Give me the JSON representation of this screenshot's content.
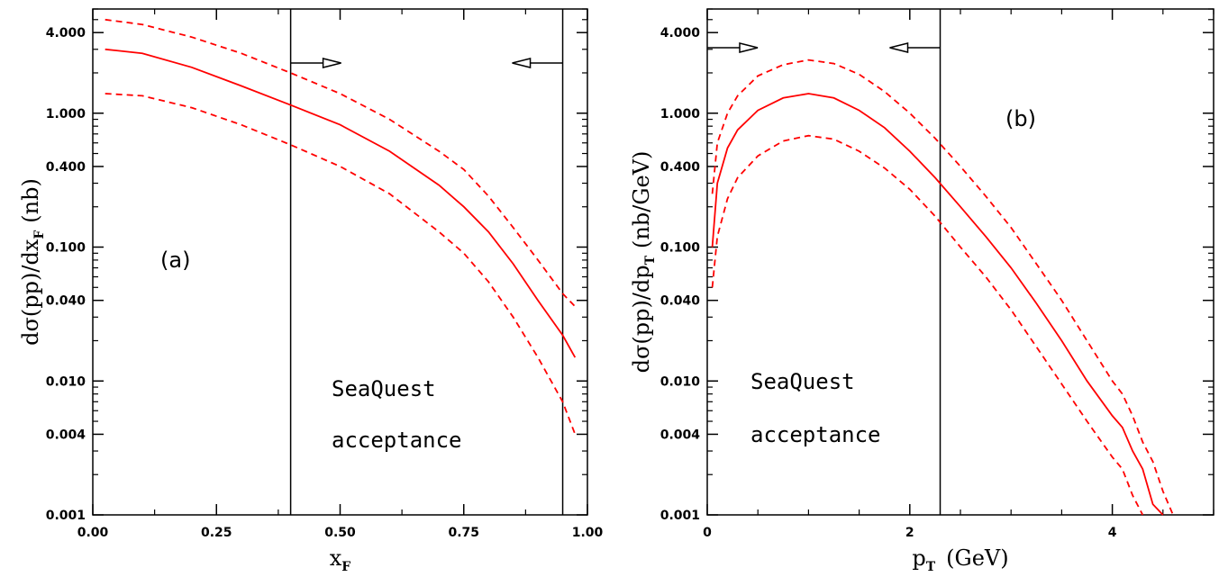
{
  "chart_data": [
    {
      "type": "line",
      "panel_label": "(a)",
      "xlabel": "x",
      "xlabel_sub": "F",
      "ylabel": "dσ(pp)/dx",
      "ylabel_sub": "F",
      "ylabel_unit": "(nb)",
      "xlim": [
        0,
        1
      ],
      "ylim": [
        0.001,
        6
      ],
      "yscale": "log",
      "xticks": [
        0,
        0.25,
        0.5,
        0.75,
        1.0
      ],
      "xtick_labels": [
        "0.00",
        "0.25",
        "0.50",
        "0.75",
        "1.00"
      ],
      "yticks": [
        0.001,
        0.004,
        0.01,
        0.04,
        0.1,
        0.4,
        1.0,
        4.0
      ],
      "ytick_labels": [
        "0.001",
        "0.004",
        "0.010",
        "0.040",
        "0.100",
        "0.400",
        "1.000",
        "4.000"
      ],
      "annotation": [
        "SeaQuest",
        "acceptance"
      ],
      "acceptance": [
        0.4,
        0.95
      ],
      "series": [
        {
          "style": "solid",
          "color": "#ff0000",
          "x": [
            0.025,
            0.1,
            0.2,
            0.3,
            0.4,
            0.5,
            0.6,
            0.7,
            0.75,
            0.8,
            0.85,
            0.9,
            0.95,
            0.975
          ],
          "y": [
            3.0,
            2.8,
            2.2,
            1.6,
            1.15,
            0.82,
            0.52,
            0.29,
            0.2,
            0.13,
            0.075,
            0.04,
            0.022,
            0.015
          ]
        },
        {
          "style": "dashed",
          "color": "#ff0000",
          "x": [
            0.025,
            0.1,
            0.2,
            0.3,
            0.4,
            0.5,
            0.6,
            0.7,
            0.75,
            0.8,
            0.85,
            0.9,
            0.95,
            0.975
          ],
          "y": [
            5.0,
            4.6,
            3.7,
            2.8,
            2.0,
            1.4,
            0.9,
            0.52,
            0.38,
            0.24,
            0.14,
            0.08,
            0.045,
            0.036
          ]
        },
        {
          "style": "dashed",
          "color": "#ff0000",
          "x": [
            0.025,
            0.1,
            0.2,
            0.3,
            0.4,
            0.5,
            0.6,
            0.7,
            0.75,
            0.8,
            0.85,
            0.9,
            0.95,
            0.975
          ],
          "y": [
            1.4,
            1.35,
            1.1,
            0.82,
            0.58,
            0.4,
            0.25,
            0.13,
            0.09,
            0.055,
            0.03,
            0.015,
            0.007,
            0.004
          ]
        }
      ]
    },
    {
      "type": "line",
      "panel_label": "(b)",
      "xlabel": "p",
      "xlabel_sub": "T",
      "xlabel_unit": "(GeV)",
      "ylabel": "dσ(pp)/dp",
      "ylabel_sub": "T",
      "ylabel_unit": "(nb/GeV)",
      "xlim": [
        0,
        5
      ],
      "ylim": [
        0.001,
        6
      ],
      "yscale": "log",
      "xticks": [
        0,
        2,
        4
      ],
      "xtick_labels": [
        "0",
        "2",
        "4"
      ],
      "yticks": [
        0.001,
        0.004,
        0.01,
        0.04,
        0.1,
        0.4,
        1.0,
        4.0
      ],
      "ytick_labels": [
        "0.001",
        "0.004",
        "0.010",
        "0.040",
        "0.100",
        "0.400",
        "1.000",
        "4.000"
      ],
      "annotation": [
        "SeaQuest",
        "acceptance"
      ],
      "acceptance": [
        0,
        2.3
      ],
      "series": [
        {
          "style": "solid",
          "color": "#ff0000",
          "x": [
            0.05,
            0.1,
            0.2,
            0.3,
            0.5,
            0.75,
            1.0,
            1.25,
            1.5,
            1.75,
            2.0,
            2.25,
            2.5,
            2.75,
            3.0,
            3.25,
            3.5,
            3.75,
            4.0,
            4.1,
            4.2,
            4.3,
            4.4,
            4.5
          ],
          "y": [
            0.1,
            0.3,
            0.55,
            0.75,
            1.05,
            1.3,
            1.4,
            1.3,
            1.05,
            0.78,
            0.52,
            0.33,
            0.2,
            0.12,
            0.07,
            0.038,
            0.02,
            0.01,
            0.0055,
            0.0045,
            0.003,
            0.0022,
            0.0012,
            0.001
          ]
        },
        {
          "style": "dashed",
          "color": "#ff0000",
          "x": [
            0.05,
            0.1,
            0.2,
            0.3,
            0.5,
            0.75,
            1.0,
            1.25,
            1.5,
            1.75,
            2.0,
            2.25,
            2.5,
            2.75,
            3.0,
            3.25,
            3.5,
            3.75,
            4.0,
            4.1,
            4.2,
            4.3,
            4.4,
            4.5,
            4.6
          ],
          "y": [
            0.25,
            0.6,
            1.0,
            1.35,
            1.9,
            2.3,
            2.5,
            2.35,
            1.95,
            1.45,
            1.0,
            0.65,
            0.4,
            0.24,
            0.14,
            0.075,
            0.04,
            0.02,
            0.01,
            0.008,
            0.0055,
            0.0035,
            0.0025,
            0.0015,
            0.001
          ]
        },
        {
          "style": "dashed",
          "color": "#ff0000",
          "x": [
            0.05,
            0.1,
            0.2,
            0.3,
            0.5,
            0.75,
            1.0,
            1.25,
            1.5,
            1.75,
            2.0,
            2.25,
            2.5,
            2.75,
            3.0,
            3.25,
            3.5,
            3.75,
            4.0,
            4.1,
            4.2,
            4.3
          ],
          "y": [
            0.05,
            0.12,
            0.23,
            0.33,
            0.48,
            0.62,
            0.68,
            0.64,
            0.52,
            0.39,
            0.27,
            0.17,
            0.1,
            0.06,
            0.034,
            0.018,
            0.0095,
            0.005,
            0.0027,
            0.0022,
            0.0014,
            0.001
          ]
        }
      ]
    }
  ]
}
